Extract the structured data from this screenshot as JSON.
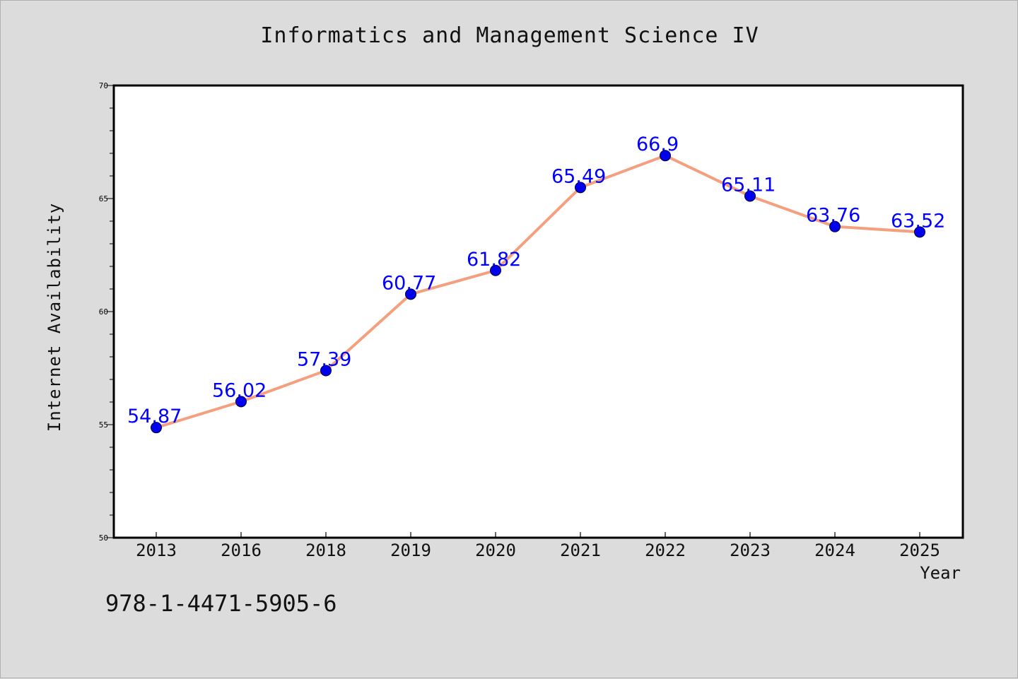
{
  "chart_data": {
    "type": "line",
    "title": "Informatics and Management Science IV",
    "xlabel": "Year",
    "ylabel": "Internet Availability",
    "categories": [
      "2013",
      "2016",
      "2018",
      "2019",
      "2020",
      "2021",
      "2022",
      "2023",
      "2024",
      "2025"
    ],
    "series": [
      {
        "values": [
          54.87,
          56.02,
          57.39,
          60.77,
          61.82,
          65.49,
          66.9,
          65.11,
          63.76,
          63.52
        ]
      }
    ],
    "data_labels": [
      "54.87",
      "56.02",
      "57.39",
      "60.77",
      "61.82",
      "65.49",
      "66.9",
      "65.11",
      "63.76",
      "63.52"
    ],
    "ylim": [
      50,
      70
    ],
    "y_ticks": [
      50,
      55,
      60,
      65,
      70
    ],
    "grid": false,
    "legend": "none",
    "colors": {
      "line": "#f4a07f",
      "marker": "#0000ee",
      "data_label": "#0000ff",
      "plot_bg": "#ffffff",
      "page_bg": "#dcdcdc"
    }
  },
  "footnote": "978-1-4471-5905-6"
}
